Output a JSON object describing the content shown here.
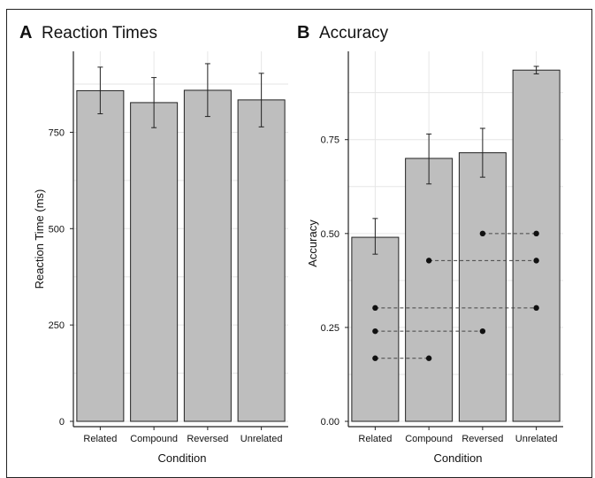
{
  "chart_data": [
    {
      "type": "bar",
      "panel_letter": "A",
      "title": "Reaction Times",
      "xlabel": "Condition",
      "ylabel": "Reaction Time (ms)",
      "categories": [
        "Related",
        "Compound",
        "Reversed",
        "Unrelated"
      ],
      "values": [
        858,
        827,
        859,
        834
      ],
      "error_low": [
        798,
        762,
        791,
        764
      ],
      "error_high": [
        919,
        892,
        928,
        903
      ],
      "ylim": [
        0,
        960
      ],
      "yticks": [
        0,
        250,
        500,
        750
      ],
      "ytick_labels": [
        "0",
        "250",
        "500",
        "750"
      ],
      "grid": true
    },
    {
      "type": "bar",
      "panel_letter": "B",
      "title": "Accuracy",
      "xlabel": "Condition",
      "ylabel": "Accuracy",
      "categories": [
        "Related",
        "Compound",
        "Reversed",
        "Unrelated"
      ],
      "values": [
        0.49,
        0.7,
        0.715,
        0.935
      ],
      "error_low": [
        0.445,
        0.632,
        0.65,
        0.925
      ],
      "error_high": [
        0.54,
        0.765,
        0.78,
        0.945
      ],
      "ylim": [
        0,
        0.985
      ],
      "yticks": [
        0.0,
        0.25,
        0.5,
        0.75
      ],
      "ytick_labels": [
        "0.00",
        "0.25",
        "0.50",
        "0.75"
      ],
      "grid": true,
      "pairs": [
        {
          "x1": "Reversed",
          "x2": "Unrelated",
          "y": 0.5
        },
        {
          "x1": "Compound",
          "x2": "Unrelated",
          "y": 0.428
        },
        {
          "x1": "Related",
          "x2": "Unrelated",
          "y": 0.302
        },
        {
          "x1": "Related",
          "x2": "Reversed",
          "y": 0.24
        },
        {
          "x1": "Related",
          "x2": "Compound",
          "y": 0.168
        }
      ]
    }
  ],
  "colors": {
    "bar_fill": "#bebebe",
    "bar_stroke": "#222222",
    "grid": "#e6e6e6",
    "axis": "#222222",
    "point": "#111111",
    "dash": "#444444"
  }
}
